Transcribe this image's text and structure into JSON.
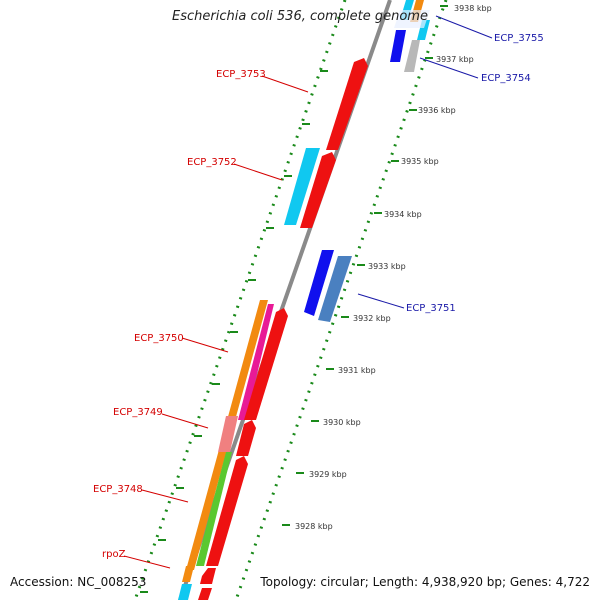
{
  "title": "Escherichia coli 536, complete genome",
  "accession_text": "Accession: NC_008253",
  "topology_text": "Topology: circular; Length: 4,938,920 bp; Genes: 4,722",
  "colors": {
    "backbone": "#8a8a8a",
    "dots": "#1a8a1a",
    "red_label": "#d40000",
    "blue_label": "#1a1aa8",
    "feature_red": "#ee1111",
    "feature_blue": "#1010ee",
    "feature_cyan": "#10c8f0",
    "feature_steel": "#4a80c0",
    "feature_orange": "#f28a10",
    "feature_magenta": "#e81a96",
    "feature_pink": "#f08080",
    "feature_green": "#5ac830",
    "feature_grey": "#b8b8b8"
  },
  "kbp_labels": [
    "3938 kbp",
    "3937 kbp",
    "3936 kbp",
    "3935 kbp",
    "3934 kbp",
    "3933 kbp",
    "3932 kbp",
    "3931 kbp",
    "3930 kbp",
    "3929 kbp",
    "3928 kbp"
  ],
  "gene_labels_left": [
    "ECP_3753",
    "ECP_3752",
    "ECP_3750",
    "ECP_3749",
    "ECP_3748",
    "rpoZ"
  ],
  "gene_labels_right": [
    "ECP_3755",
    "ECP_3754",
    "ECP_3751"
  ]
}
